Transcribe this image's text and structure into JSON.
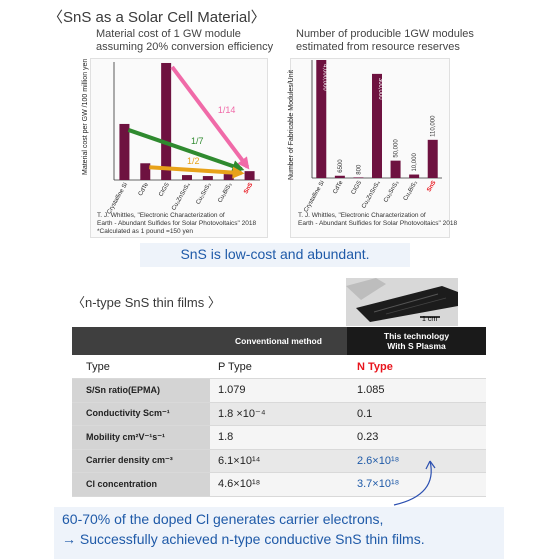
{
  "page": {
    "title": "〈SnS as a Solar Cell Material〉",
    "summary": "SnS is low-cost and abundant.",
    "section2_title": "〈n-type SnS thin films 〉",
    "photo_scale": "1 cm",
    "footer_line1": "60-70% of the doped Cl generates carrier electrons,",
    "footer_line2": "→ Successfully achieved n-type conductive SnS thin films."
  },
  "chart_data": [
    {
      "type": "bar",
      "title_line1": "Material cost of 1 GW module",
      "title_line2": "assuming 20% conversion efficiency",
      "ylabel": "Material cost per GW /100 million yen",
      "categories": [
        "Crystalline Si",
        "CdTe",
        "CIGS",
        "Cu₂ZnSnS₄",
        "Cu₂SnS₃",
        "Cu₂BiS₃",
        "SnS"
      ],
      "values": [
        5.7,
        1.7,
        11.9,
        0.5,
        0.4,
        0.6,
        0.9
      ],
      "ylim": [
        0,
        12
      ],
      "highlight": "SnS",
      "annotations": [
        "1/14",
        "1/7",
        "1/2"
      ],
      "arrow_colors": [
        "#f06aa8",
        "#2f8a2f",
        "#e8a21a"
      ],
      "citation_line1": "T. J. Whittles, \"Electronic Characterization of",
      "citation_line2": "Earth - Abundant Sulfides for Solar Photovoltaics\" 2018",
      "citation_line3": "*Calculated as 1 pound =150 yen"
    },
    {
      "type": "bar",
      "title_line1": "Number of producible 1GW modules",
      "title_line2": "estimated from resource reserves",
      "ylabel": "Number of Fabricable Modules/Unit",
      "categories": [
        "Crystalline Si",
        "CdTe",
        "CIGS",
        "Cu₂ZnSnS₄",
        "Cu₂SnS₃",
        "Cu₂BiS₃",
        "SnS"
      ],
      "values": [
        4000000,
        6500,
        800,
        300000,
        50000,
        10000,
        110000
      ],
      "value_labels": [
        "4,000,000",
        "6500",
        "800",
        "300,000",
        "50,000",
        "10,000",
        "110,000"
      ],
      "ylim": [
        0,
        340000
      ],
      "highlight": "SnS",
      "citation_line1": "T. J. Whittles, \"Electronic Characterization of",
      "citation_line2": "Earth - Abundant Sulfides for Solar Photovoltaics\" 2018"
    }
  ],
  "table": {
    "headers": [
      "",
      "Conventional method",
      "This technology\nWith S Plasma"
    ],
    "rows": [
      {
        "label": "Type",
        "conv": "P Type",
        "new": "N Type"
      },
      {
        "label": "S/Sn ratio(EPMA)",
        "conv": "1.079",
        "new": "1.085"
      },
      {
        "label": "Conductivity  Scm⁻¹",
        "conv": "1.8 ×10⁻⁴",
        "new": "0.1"
      },
      {
        "label": "Mobility cm²V⁻¹s⁻¹",
        "conv": "1.8",
        "new": "0.23"
      },
      {
        "label": "Carrier density cm⁻³",
        "conv": "6.1×10¹⁴",
        "new": "2.6×10¹⁸"
      },
      {
        "label": "Cl concentration",
        "conv": "4.6×10¹⁸",
        "new": "3.7×10¹⁸"
      }
    ],
    "colors": {
      "header_dark": "#3f3f3f",
      "header_new": "#1a1a1a",
      "accent_red": "#e8141c",
      "accent_blue": "#1f5aa8",
      "bar_purple": "#6e1240"
    }
  }
}
